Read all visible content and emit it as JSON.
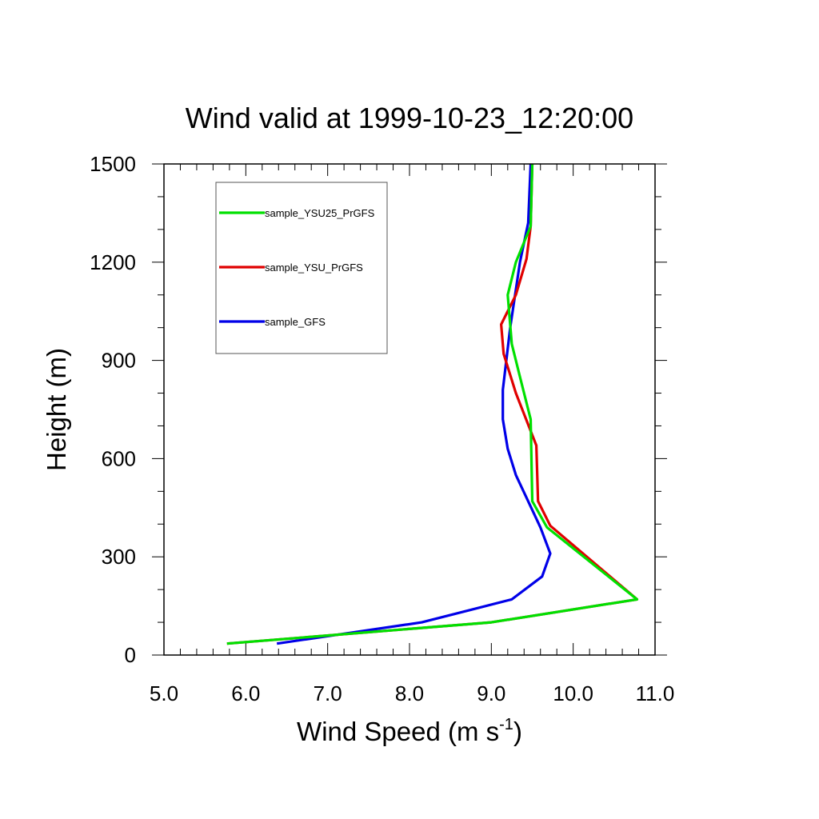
{
  "chart_data": {
    "type": "line",
    "title": "Wind valid at 1999-10-23_12:20:00",
    "xlabel": "Wind Speed (m s",
    "xlabel_sup": "-1",
    "xlabel_close": ")",
    "ylabel": "Height (m)",
    "xlim": [
      5.0,
      11.0
    ],
    "ylim": [
      0,
      1500
    ],
    "xticks": [
      5.0,
      6.0,
      7.0,
      8.0,
      9.0,
      10.0,
      11.0
    ],
    "xtick_labels": [
      "5.0",
      "6.0",
      "7.0",
      "8.0",
      "9.0",
      "10.0",
      "11.0"
    ],
    "yticks": [
      0,
      300,
      600,
      900,
      1200,
      1500
    ],
    "ytick_labels": [
      "0",
      "300",
      "600",
      "900",
      "1200",
      "1500"
    ],
    "legend_position": "top-left",
    "series": [
      {
        "name": "sample_YSU25_PrGFS",
        "color": "#00e000",
        "points": [
          [
            5.77,
            35
          ],
          [
            9.0,
            100
          ],
          [
            10.78,
            170
          ],
          [
            9.68,
            390
          ],
          [
            9.5,
            470
          ],
          [
            9.48,
            720
          ],
          [
            9.35,
            850
          ],
          [
            9.25,
            950
          ],
          [
            9.2,
            1100
          ],
          [
            9.3,
            1200
          ],
          [
            9.48,
            1310
          ],
          [
            9.5,
            1500
          ]
        ]
      },
      {
        "name": "sample_YSU_PrGFS",
        "color": "#e00000",
        "points": [
          [
            5.77,
            35
          ],
          [
            9.0,
            100
          ],
          [
            10.78,
            170
          ],
          [
            9.72,
            395
          ],
          [
            9.57,
            470
          ],
          [
            9.55,
            640
          ],
          [
            9.3,
            800
          ],
          [
            9.15,
            920
          ],
          [
            9.12,
            1010
          ],
          [
            9.3,
            1100
          ],
          [
            9.43,
            1210
          ],
          [
            9.48,
            1310
          ],
          [
            9.5,
            1500
          ]
        ]
      },
      {
        "name": "sample_GFS",
        "color": "#0000e8",
        "points": [
          [
            6.38,
            35
          ],
          [
            8.15,
            100
          ],
          [
            9.25,
            170
          ],
          [
            9.62,
            240
          ],
          [
            9.72,
            310
          ],
          [
            9.6,
            390
          ],
          [
            9.3,
            550
          ],
          [
            9.2,
            630
          ],
          [
            9.14,
            720
          ],
          [
            9.14,
            810
          ],
          [
            9.23,
            1000
          ],
          [
            9.35,
            1200
          ],
          [
            9.45,
            1320
          ],
          [
            9.48,
            1500
          ]
        ]
      }
    ]
  }
}
